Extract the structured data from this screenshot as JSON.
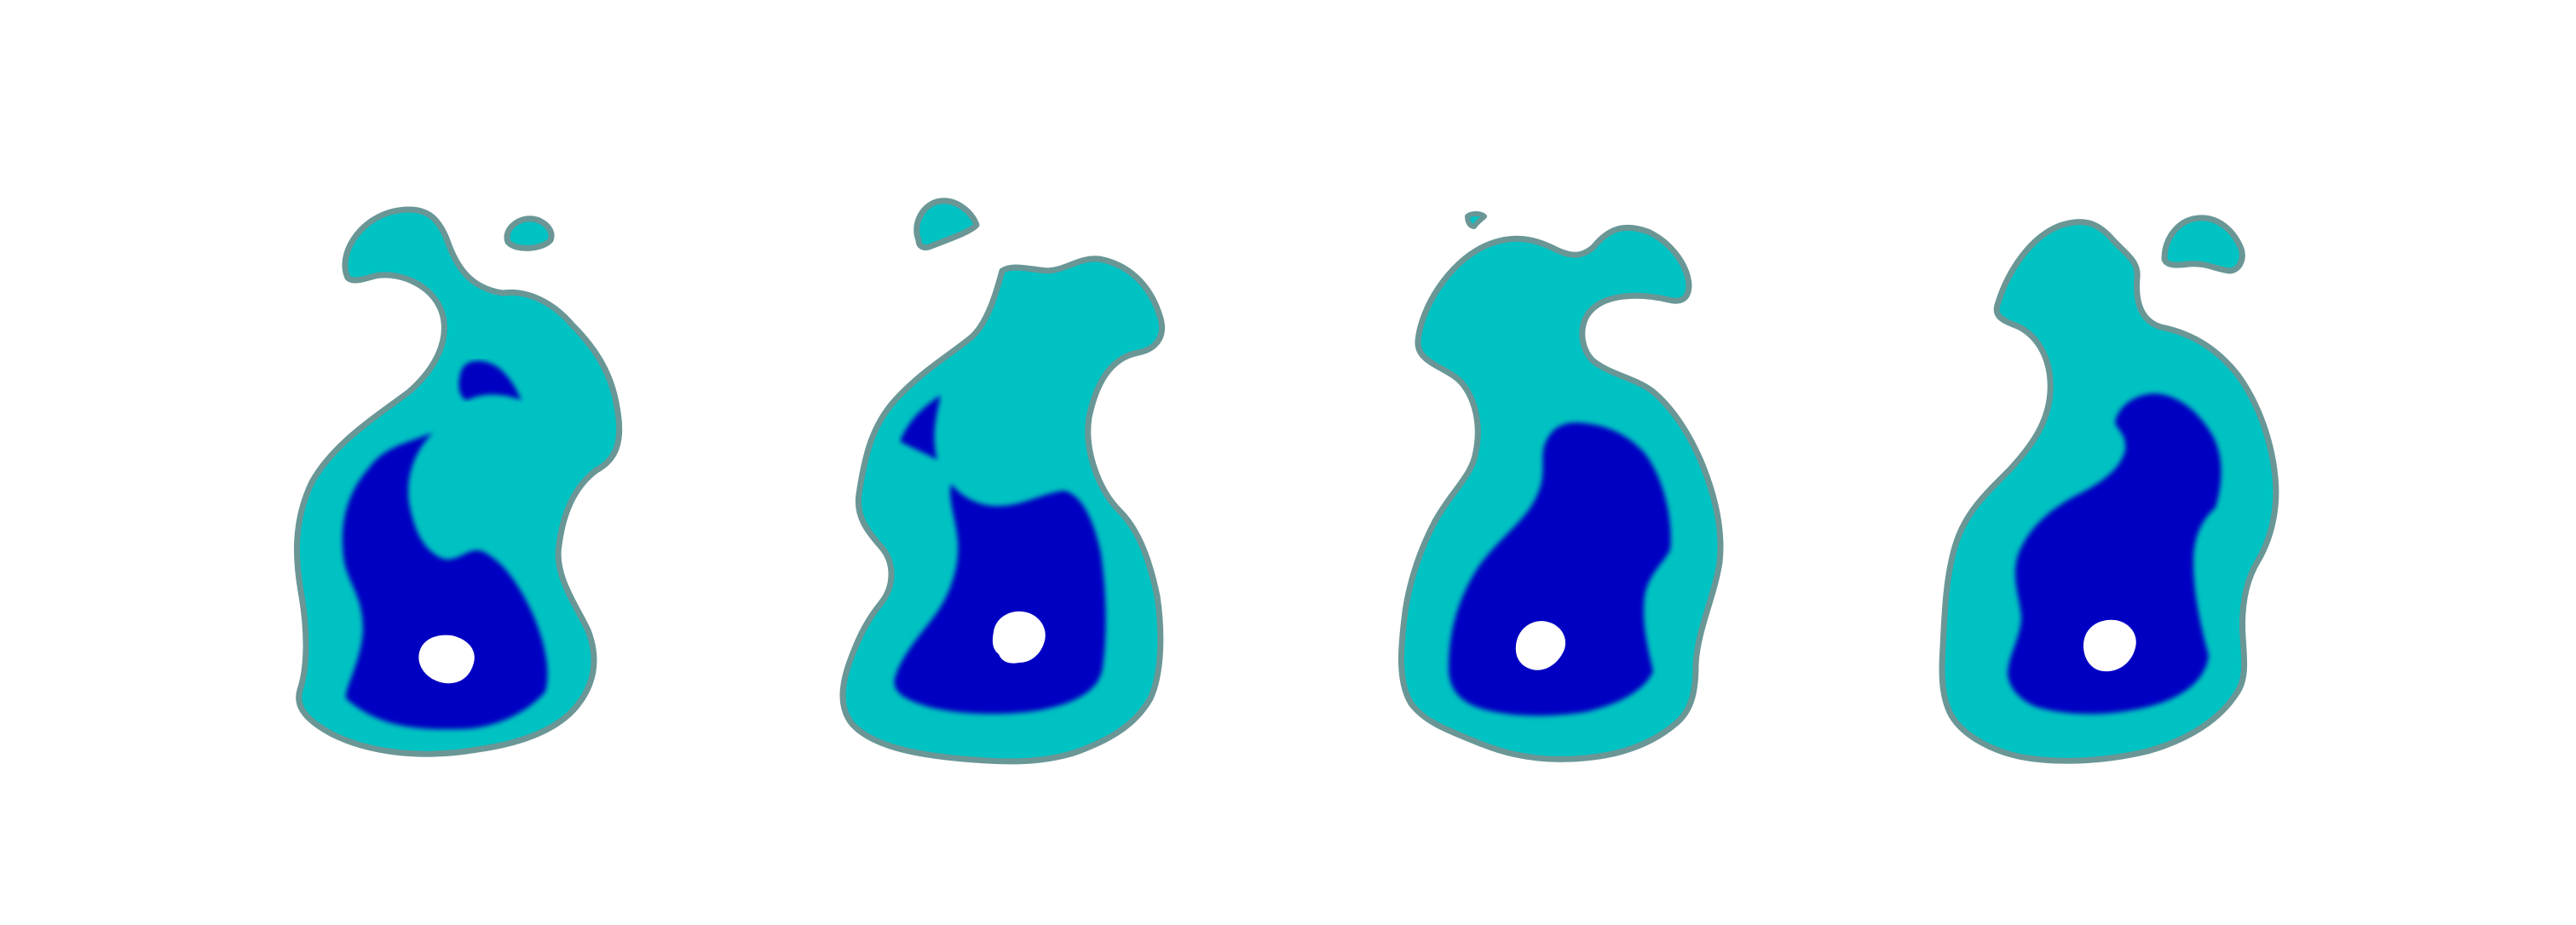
{
  "figure": {
    "panel_count": 4,
    "colors": {
      "background": "#ffffff",
      "outline": "#6a9696",
      "outline_glow": "#8fd6d6",
      "outer_region": "#00c2c2",
      "inner_region": "#0000c2",
      "core": "#ffffff"
    },
    "panels": [
      {
        "id": "panel-1",
        "has_separate_blob": true,
        "inner_region_split": true
      },
      {
        "id": "panel-2",
        "has_separate_blob": true,
        "inner_region_split": true
      },
      {
        "id": "panel-3",
        "has_separate_blob": true,
        "inner_region_split": false
      },
      {
        "id": "panel-4",
        "has_separate_blob": true,
        "inner_region_split": false
      }
    ]
  }
}
